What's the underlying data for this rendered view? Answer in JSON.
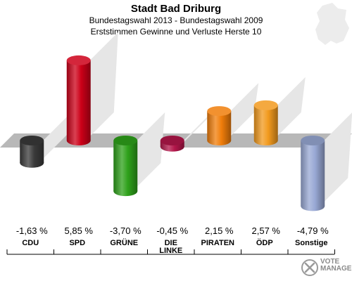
{
  "header": {
    "title": "Stadt Bad Driburg",
    "subtitle": "Bundestagswahl 2013 - Bundestagswahl 2009",
    "subtitle2": "Erststimmen Gewinne und Verluste Herste 10"
  },
  "watermark": {
    "line1": "VOTE",
    "line2": "MANAGER"
  },
  "chart_data": {
    "type": "bar",
    "title": "Stadt Bad Driburg",
    "subtitle": "Bundestagswahl 2013 - Bundestagswahl 2009 / Erststimmen Gewinne und Verluste Herste 10",
    "xlabel": "",
    "ylabel": "",
    "categories": [
      "CDU",
      "SPD",
      "GRÜNE",
      "DIE LINKE",
      "PIRATEN",
      "ÖDP",
      "Sonstige"
    ],
    "values": [
      -1.63,
      5.85,
      -3.7,
      -0.45,
      2.15,
      2.57,
      -4.79
    ],
    "value_labels": [
      "-1,63 %",
      "5,85 %",
      "-3,70 %",
      "-0,45 %",
      "2,15 %",
      "2,57 %",
      "-4,79 %"
    ],
    "colors": [
      "#3a3a3a",
      "#cc0018",
      "#2ea11a",
      "#b3164a",
      "#f07d0a",
      "#f29a1e",
      "#98a8d4"
    ],
    "ylim": [
      -6,
      8
    ],
    "grid": false,
    "legend": "none"
  }
}
